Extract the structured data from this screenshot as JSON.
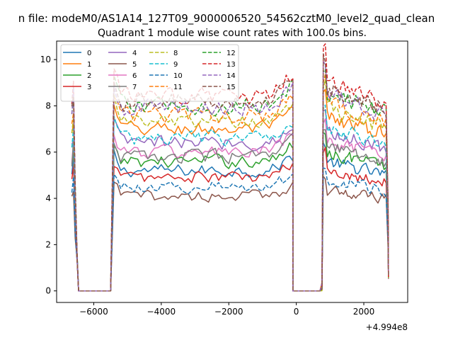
{
  "chart_data": {
    "type": "line",
    "suptitle": "n file: modeM0/AS1A14_127T09_9000006520_54562cztM0_level2_quad_clean",
    "title": "Quadrant 1 module wise count rates with 100.0s bins.",
    "xlabel": "",
    "ylabel": "",
    "x_offset_label": "+4.994e8",
    "xlim": [
      -7100,
      3300
    ],
    "ylim": [
      -0.5,
      10.8
    ],
    "xticks": [
      -6000,
      -4000,
      -2000,
      0,
      2000
    ],
    "xtick_labels": [
      "−6000",
      "−4000",
      "−2000",
      "0",
      "2000"
    ],
    "yticks": [
      0,
      2,
      4,
      6,
      8,
      10
    ],
    "ytick_labels": [
      "0",
      "2",
      "4",
      "6",
      "8",
      "10"
    ],
    "legend_location": "upper-left",
    "segments": [
      {
        "x_start": -6650,
        "x_end": -6450,
        "plateau_end": -6550
      },
      {
        "x_start": -5500,
        "x_end": -100
      },
      {
        "x_start": 800,
        "x_end": 2700
      }
    ],
    "gaps": [
      {
        "x_start": -6450,
        "x_end": -5500,
        "value": 0
      },
      {
        "x_start": -100,
        "x_end": 800,
        "value": 0
      }
    ],
    "series": [
      {
        "name": "0",
        "color": "#1f77b4",
        "dash": "solid",
        "level": 5.2
      },
      {
        "name": "1",
        "color": "#ff7f0e",
        "dash": "solid",
        "level": 7.0
      },
      {
        "name": "2",
        "color": "#2ca02c",
        "dash": "solid",
        "level": 5.6
      },
      {
        "name": "3",
        "color": "#d62728",
        "dash": "solid",
        "level": 4.9
      },
      {
        "name": "4",
        "color": "#9467bd",
        "dash": "solid",
        "level": 6.4
      },
      {
        "name": "5",
        "color": "#8c564b",
        "dash": "solid",
        "level": 4.1
      },
      {
        "name": "6",
        "color": "#e377c2",
        "dash": "solid",
        "level": 6.0
      },
      {
        "name": "7",
        "color": "#7f7f7f",
        "dash": "solid",
        "level": 5.8
      },
      {
        "name": "8",
        "color": "#bcbd22",
        "dash": "dashed",
        "level": 7.3
      },
      {
        "name": "9",
        "color": "#17becf",
        "dash": "dashed",
        "level": 6.6
      },
      {
        "name": "10",
        "color": "#1f77b4",
        "dash": "dashed",
        "level": 4.5
      },
      {
        "name": "11",
        "color": "#ff7f0e",
        "dash": "dashed",
        "level": 7.6
      },
      {
        "name": "12",
        "color": "#2ca02c",
        "dash": "dashed",
        "level": 8.0
      },
      {
        "name": "13",
        "color": "#d62728",
        "dash": "dashed",
        "level": 8.4
      },
      {
        "name": "14",
        "color": "#9467bd",
        "dash": "dashed",
        "level": 7.9
      },
      {
        "name": "15",
        "color": "#8c564b",
        "dash": "dashed",
        "level": 8.2
      }
    ]
  }
}
